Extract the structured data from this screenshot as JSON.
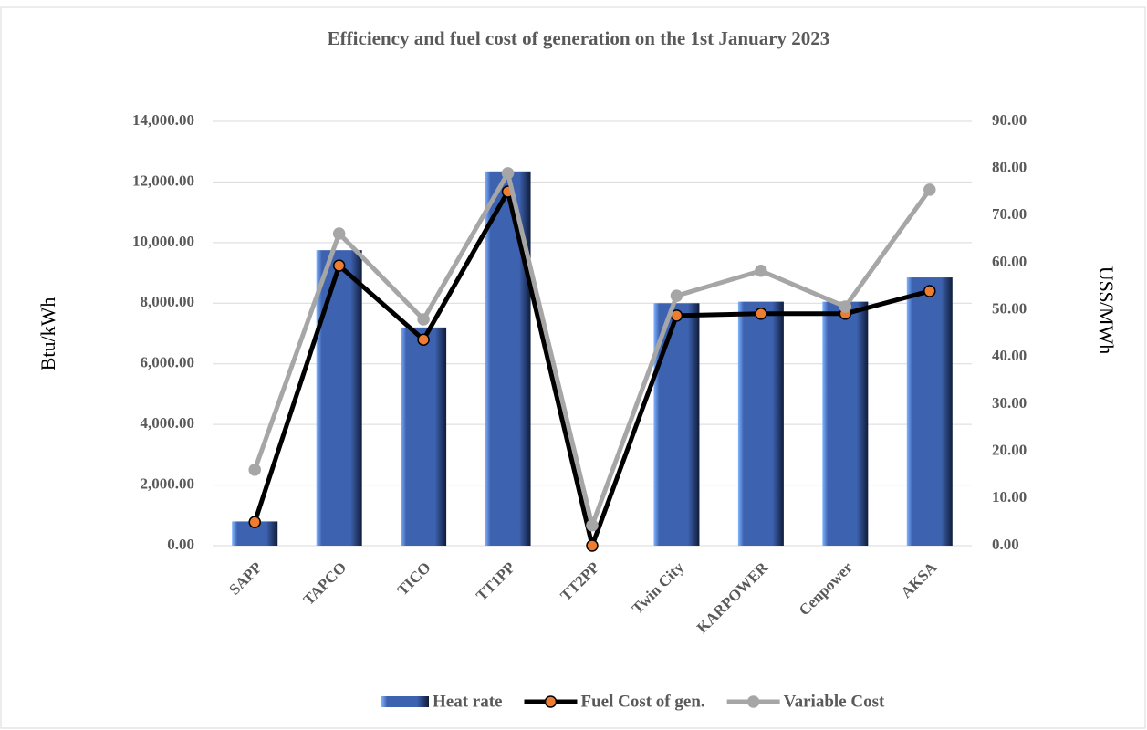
{
  "chart_data": {
    "type": "combo",
    "title": "Efficiency and fuel cost of generation on the 1st January 2023",
    "y_label": "Btu/kWh",
    "y2_label": "US$/MWh",
    "categories": [
      "SAPP",
      "TAPCO",
      "TICO",
      "TT1PP",
      "TT2PP",
      "Twin City",
      "KARPOWER",
      "Cenpower",
      "AKSA"
    ],
    "series": [
      {
        "name": "Heat rate",
        "type": "bar",
        "color": "#3d62b0",
        "values": [
          800,
          9750,
          7200,
          12350,
          0,
          8000,
          8050,
          8050,
          8850
        ]
      },
      {
        "name": "Fuel Cost of gen.",
        "type": "line",
        "axis": "y2",
        "color": "#000000",
        "marker_color": "#ed7d31",
        "values": [
          5.0,
          59.4,
          43.7,
          75.1,
          0,
          48.8,
          49.2,
          49.2,
          54.0
        ]
      },
      {
        "name": "Variable Cost",
        "type": "line",
        "axis": "y2",
        "color": "#a6a6a6",
        "marker_color": "#a6a6a6",
        "values": [
          16.1,
          66.2,
          48.0,
          79.0,
          4.3,
          53.0,
          58.3,
          50.7,
          75.5
        ]
      }
    ],
    "ylim": [
      0,
      14000
    ],
    "yticks": [
      {
        "value": 0,
        "label": "0.00"
      },
      {
        "value": 2000,
        "label": "2,000.00"
      },
      {
        "value": 4000,
        "label": "4,000.00"
      },
      {
        "value": 6000,
        "label": "6,000.00"
      },
      {
        "value": 8000,
        "label": "8,000.00"
      },
      {
        "value": 10000,
        "label": "10,000.00"
      },
      {
        "value": 12000,
        "label": "12,000.00"
      },
      {
        "value": 14000,
        "label": "14,000.00"
      }
    ],
    "y2lim": [
      0,
      90
    ],
    "y2ticks": [
      {
        "value": 0,
        "label": "0.00"
      },
      {
        "value": 10,
        "label": "10.00"
      },
      {
        "value": 20,
        "label": "20.00"
      },
      {
        "value": 30,
        "label": "30.00"
      },
      {
        "value": 40,
        "label": "40.00"
      },
      {
        "value": 50,
        "label": "50.00"
      },
      {
        "value": 60,
        "label": "60.00"
      },
      {
        "value": 70,
        "label": "70.00"
      },
      {
        "value": 80,
        "label": "80.00"
      },
      {
        "value": 90,
        "label": "90.00"
      }
    ],
    "grid": true,
    "legend": "bottom"
  }
}
